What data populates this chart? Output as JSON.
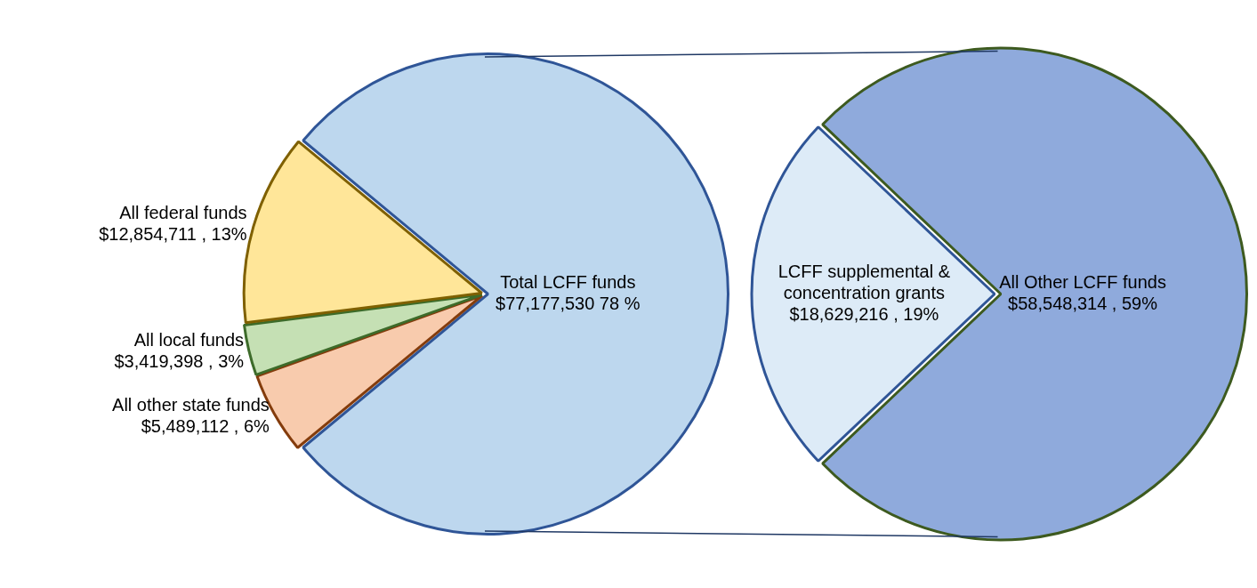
{
  "chart_data": [
    {
      "type": "pie",
      "categories": [
        "Total LCFF funds",
        "All other state funds",
        "All local funds",
        "All federal funds"
      ],
      "values": [
        77177530,
        5489112,
        3419398,
        12854711
      ],
      "colors": [
        "#bdd7ee",
        "#f8cbad",
        "#c5e0b4",
        "#ffe699"
      ],
      "value_labels": [
        "$77,177,530 78 %",
        "$5,489,112 , 6%",
        "$3,419,398 , 3%",
        "$12,854,711 , 13%"
      ],
      "legend": false
    },
    {
      "type": "pie",
      "categories": [
        "LCFF supplemental & concentration grants",
        "All Other LCFF funds"
      ],
      "values": [
        18629216,
        58548314
      ],
      "colors": [
        "#ddebf7",
        "#8faadc"
      ],
      "value_labels": [
        "$18,629,216 , 19%",
        "$58,548,314 , 59%"
      ],
      "legend": false
    }
  ]
}
